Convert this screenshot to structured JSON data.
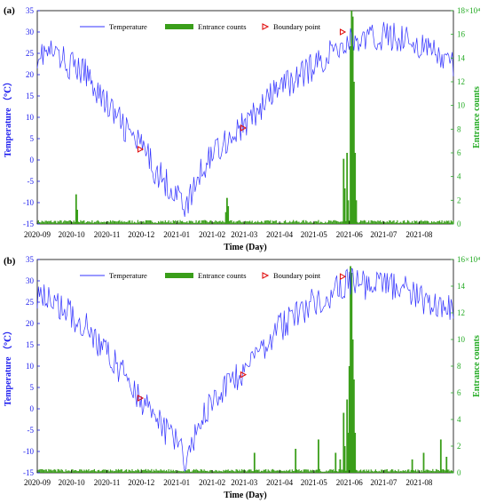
{
  "chart_data": [
    {
      "type": "line",
      "panel_label": "(a)",
      "xlabel": "Time (Day)",
      "ylabel_left": "Temperature （℃）",
      "ylabel_right": "Entrance counts",
      "x_ticks": [
        "2020-09",
        "2020-10",
        "2020-11",
        "2020-12",
        "2021-01",
        "2021-02",
        "2021-03",
        "2021-04",
        "2021-05",
        "2021-06",
        "2021-07",
        "2021-08"
      ],
      "y_left_ticks": [
        -15,
        -10,
        -5,
        0,
        5,
        10,
        15,
        20,
        25,
        30,
        35
      ],
      "y_right_ticks": [
        0,
        2,
        4,
        6,
        8,
        10,
        12,
        14,
        16,
        "18×10⁴"
      ],
      "ylim_left": [
        -15,
        35
      ],
      "ylim_right": [
        0,
        180000
      ],
      "legend": {
        "temperature": "Temperature",
        "entrance": "Entrance counts",
        "boundary": "Boundary point",
        "placement": "top"
      },
      "colors": {
        "temperature": "#3333ff",
        "entrance": "#3a9e1a",
        "boundary": "#e01010",
        "left_axis": "#1a1aee",
        "right_axis": "#22aa22"
      },
      "temperature_keypoints": [
        [
          "2020-09-01",
          25
        ],
        [
          "2020-09-15",
          25
        ],
        [
          "2020-10-01",
          22
        ],
        [
          "2020-10-15",
          20
        ],
        [
          "2020-11-01",
          13
        ],
        [
          "2020-11-15",
          8
        ],
        [
          "2020-12-01",
          3
        ],
        [
          "2020-12-15",
          -3
        ],
        [
          "2021-01-01",
          -8
        ],
        [
          "2021-01-10",
          -11
        ],
        [
          "2021-01-20",
          -4
        ],
        [
          "2021-02-01",
          2
        ],
        [
          "2021-02-15",
          5
        ],
        [
          "2021-03-01",
          8
        ],
        [
          "2021-03-15",
          12
        ],
        [
          "2021-04-01",
          17
        ],
        [
          "2021-04-15",
          19
        ],
        [
          "2021-05-01",
          22
        ],
        [
          "2021-05-15",
          25
        ],
        [
          "2021-06-01",
          28
        ],
        [
          "2021-06-15",
          28
        ],
        [
          "2021-07-01",
          29
        ],
        [
          "2021-07-15",
          29
        ],
        [
          "2021-08-01",
          27
        ],
        [
          "2021-08-20",
          24
        ],
        [
          "2021-08-31",
          22
        ]
      ],
      "boundary_points": [
        {
          "date": "2020-11-30",
          "temperature": 2.5
        },
        {
          "date": "2021-02-28",
          "temperature": 7.5
        },
        {
          "date": "2021-05-26",
          "temperature": 30
        }
      ],
      "entrance_bars": [
        {
          "date": "2020-10-05",
          "value": 25000
        },
        {
          "date": "2020-10-06",
          "value": 12000
        },
        {
          "date": "2021-02-14",
          "value": 22000
        },
        {
          "date": "2021-02-15",
          "value": 15000
        },
        {
          "date": "2021-02-13",
          "value": 10000
        },
        {
          "date": "2021-05-27",
          "value": 55000
        },
        {
          "date": "2021-05-28",
          "value": 30000
        },
        {
          "date": "2021-05-30",
          "value": 60000
        },
        {
          "date": "2021-05-31",
          "value": 20000
        },
        {
          "date": "2021-06-02",
          "value": 150000
        },
        {
          "date": "2021-06-03",
          "value": 180000
        },
        {
          "date": "2021-06-04",
          "value": 175000
        },
        {
          "date": "2021-06-05",
          "value": 120000
        },
        {
          "date": "2021-06-06",
          "value": 60000
        },
        {
          "date": "2021-06-07",
          "value": 20000
        }
      ]
    },
    {
      "type": "line",
      "panel_label": "(b)",
      "xlabel": "Time (Day)",
      "ylabel_left": "Temperature （℃）",
      "ylabel_right": "Entrance counts",
      "x_ticks": [
        "2020-09",
        "2020-10",
        "2020-11",
        "2020-12",
        "2021-01",
        "2021-02",
        "2021-03",
        "2021-04",
        "2021-05",
        "2021-06",
        "2021-07",
        "2021-08"
      ],
      "y_left_ticks": [
        -15,
        -10,
        -5,
        0,
        5,
        10,
        15,
        20,
        25,
        30,
        35
      ],
      "y_right_ticks": [
        0,
        2,
        4,
        6,
        8,
        10,
        12,
        14,
        "16×10⁴"
      ],
      "ylim_left": [
        -15,
        35
      ],
      "ylim_right": [
        0,
        160000
      ],
      "legend": {
        "temperature": "Temperature",
        "entrance": "Entrance counts",
        "boundary": "Boundary point",
        "placement": "top"
      },
      "colors": {
        "temperature": "#3333ff",
        "entrance": "#3a9e1a",
        "boundary": "#e01010",
        "left_axis": "#1a1aee",
        "right_axis": "#22aa22"
      },
      "temperature_keypoints": [
        [
          "2020-09-01",
          27
        ],
        [
          "2020-09-15",
          25
        ],
        [
          "2020-10-01",
          22
        ],
        [
          "2020-10-15",
          19
        ],
        [
          "2020-11-01",
          13
        ],
        [
          "2020-11-15",
          8
        ],
        [
          "2020-12-01",
          2
        ],
        [
          "2020-12-15",
          -3
        ],
        [
          "2021-01-01",
          -8
        ],
        [
          "2021-01-10",
          -12
        ],
        [
          "2021-01-20",
          -4
        ],
        [
          "2021-02-01",
          2
        ],
        [
          "2021-02-15",
          5
        ],
        [
          "2021-03-01",
          9
        ],
        [
          "2021-03-15",
          14
        ],
        [
          "2021-04-01",
          19
        ],
        [
          "2021-04-15",
          22
        ],
        [
          "2021-05-01",
          25
        ],
        [
          "2021-05-15",
          27
        ],
        [
          "2021-06-01",
          30
        ],
        [
          "2021-06-15",
          29
        ],
        [
          "2021-07-01",
          29
        ],
        [
          "2021-07-15",
          29
        ],
        [
          "2021-08-01",
          26
        ],
        [
          "2021-08-20",
          24
        ],
        [
          "2021-08-31",
          23
        ]
      ],
      "boundary_points": [
        {
          "date": "2020-11-30",
          "temperature": 2.5
        },
        {
          "date": "2021-02-28",
          "temperature": 8
        },
        {
          "date": "2021-05-26",
          "temperature": 31
        }
      ],
      "entrance_bars": [
        {
          "date": "2021-03-10",
          "value": 15000
        },
        {
          "date": "2021-04-15",
          "value": 18000
        },
        {
          "date": "2021-05-05",
          "value": 25000
        },
        {
          "date": "2021-05-20",
          "value": 15000
        },
        {
          "date": "2021-05-24",
          "value": 10000
        },
        {
          "date": "2021-05-27",
          "value": 45000
        },
        {
          "date": "2021-05-28",
          "value": 20000
        },
        {
          "date": "2021-05-30",
          "value": 55000
        },
        {
          "date": "2021-05-31",
          "value": 30000
        },
        {
          "date": "2021-06-01",
          "value": 80000
        },
        {
          "date": "2021-06-02",
          "value": 155000
        },
        {
          "date": "2021-06-03",
          "value": 150000
        },
        {
          "date": "2021-06-04",
          "value": 100000
        },
        {
          "date": "2021-06-05",
          "value": 70000
        },
        {
          "date": "2021-06-06",
          "value": 30000
        },
        {
          "date": "2021-07-26",
          "value": 10000
        },
        {
          "date": "2021-08-05",
          "value": 15000
        },
        {
          "date": "2021-08-20",
          "value": 25000
        },
        {
          "date": "2021-08-25",
          "value": 12000
        }
      ]
    }
  ]
}
